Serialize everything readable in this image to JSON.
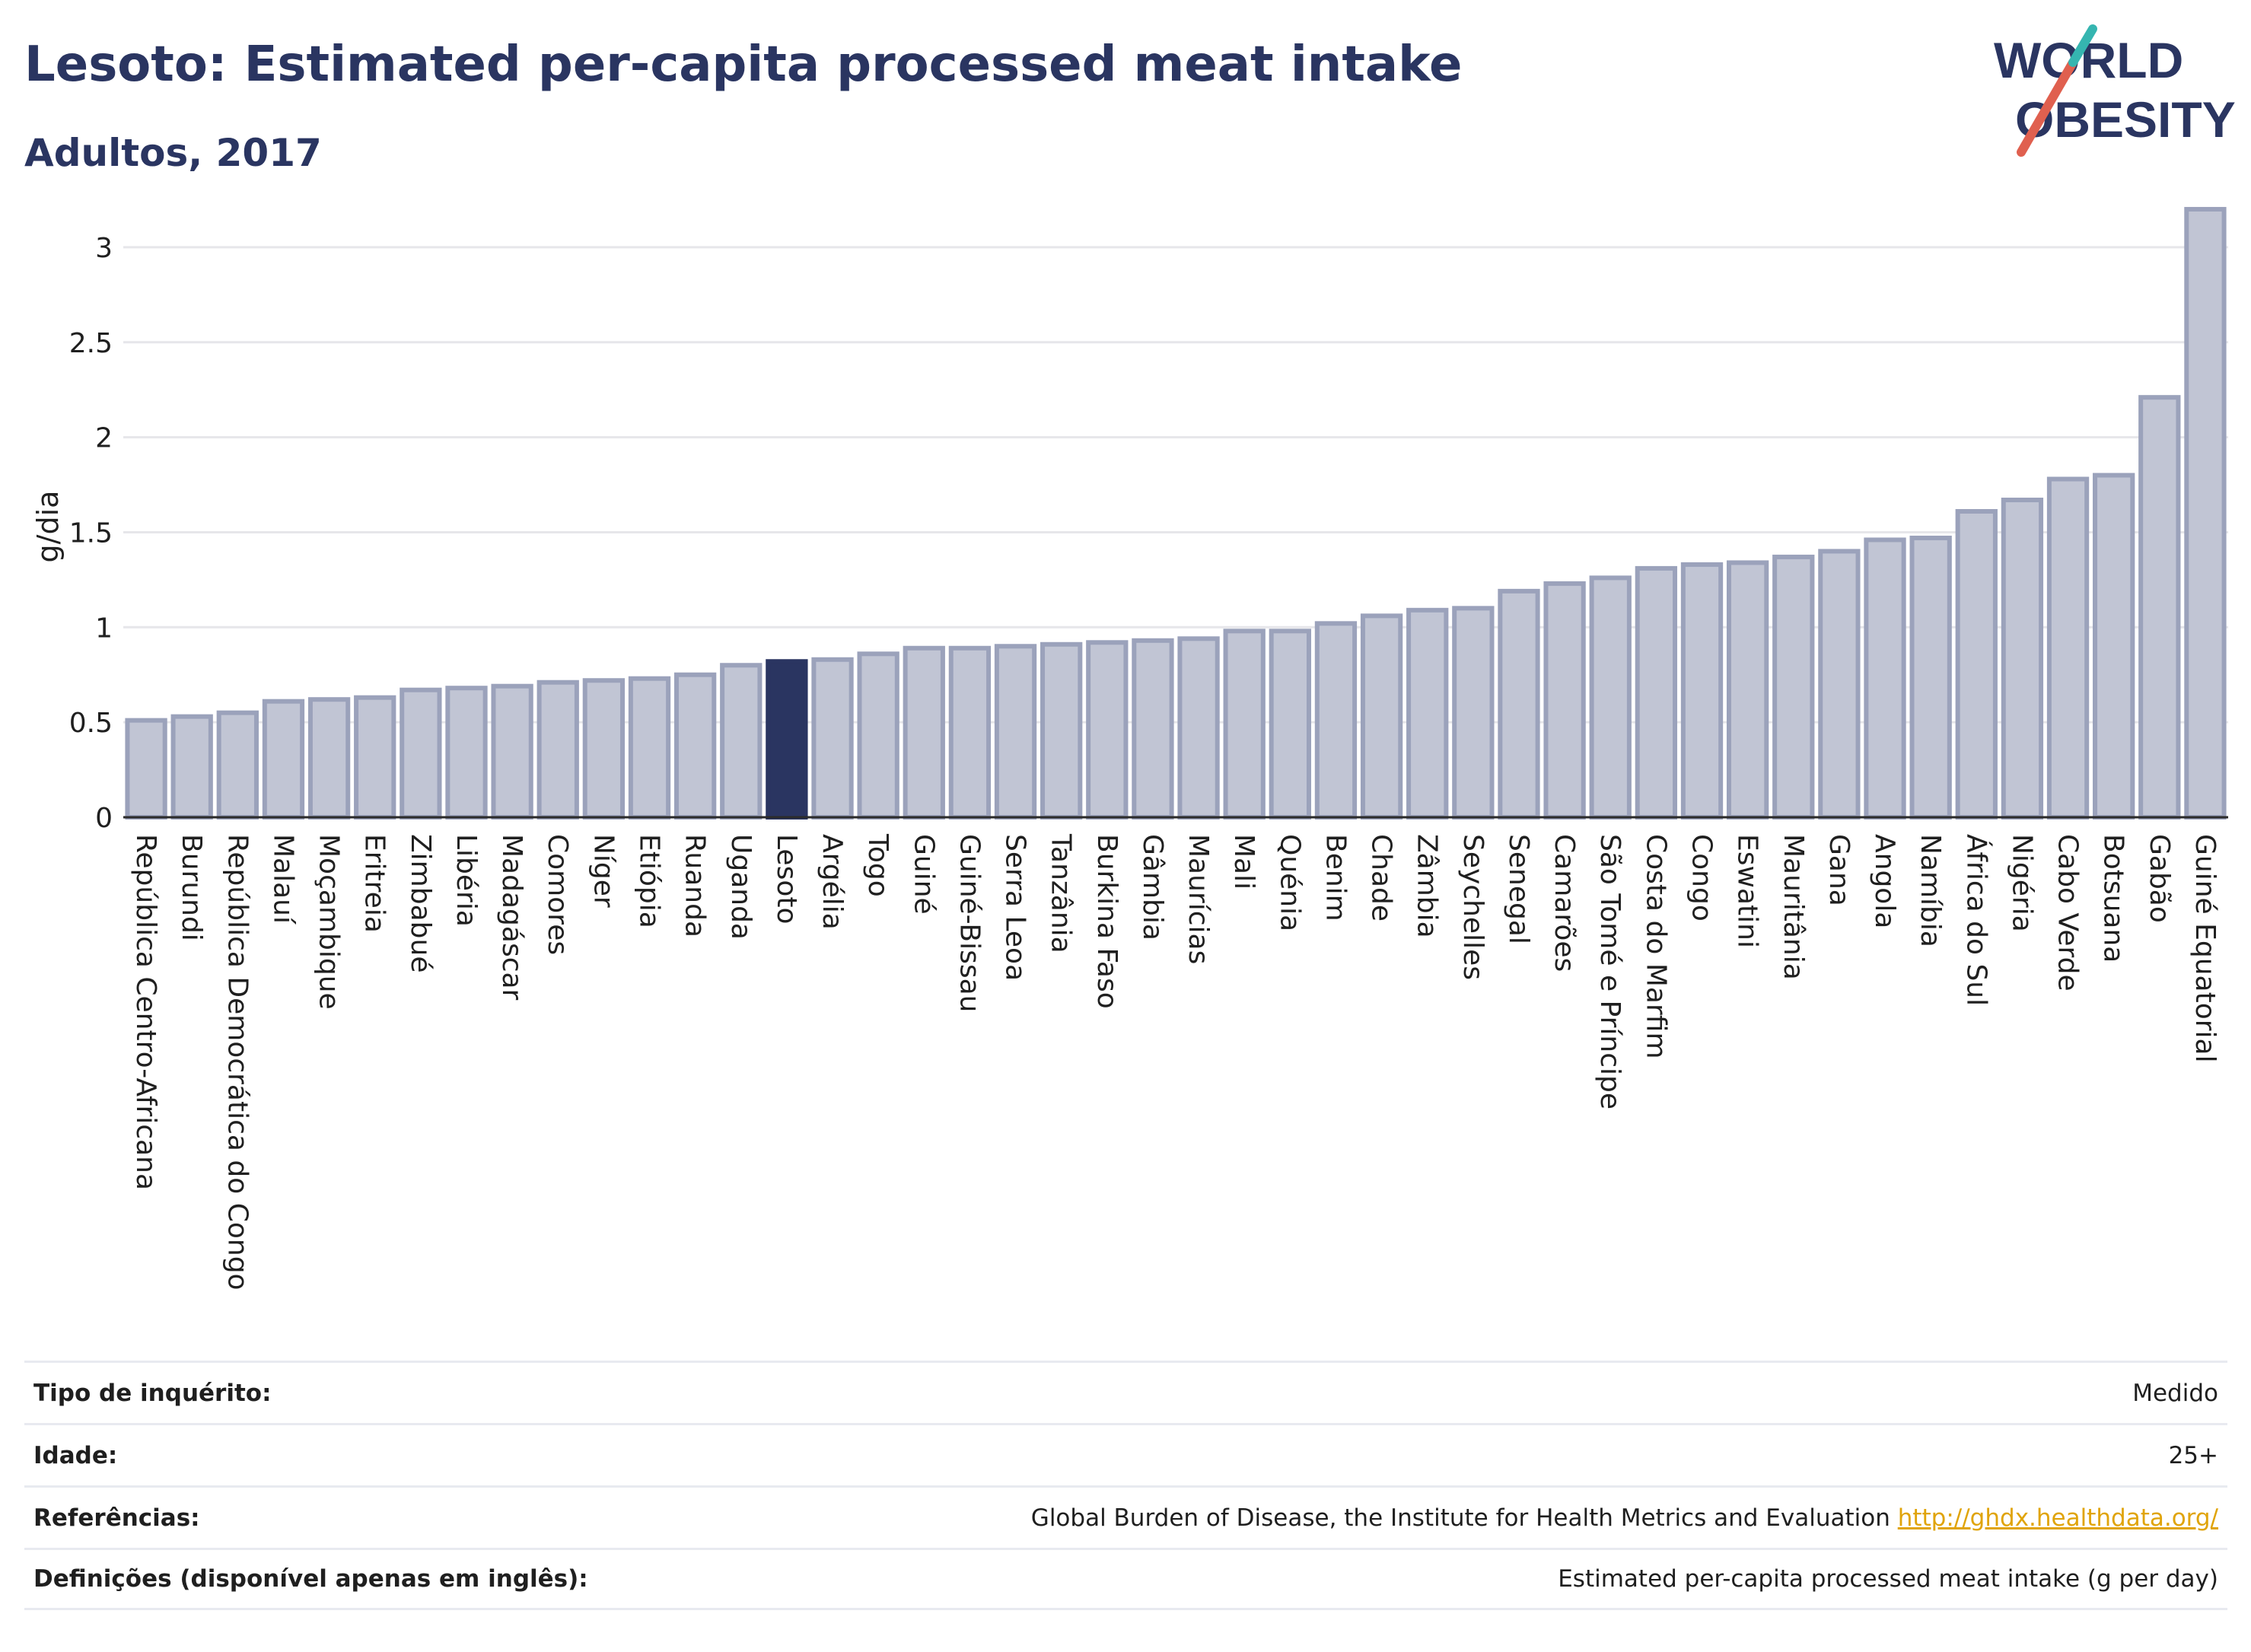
{
  "header": {
    "title": "Lesoto: Estimated per-capita processed meat intake",
    "subtitle": "Adultos, 2017",
    "logo_line1": "WORLD",
    "logo_line2": "OBESITY"
  },
  "chart_data": {
    "type": "bar",
    "ylabel": "g/dia",
    "ylim": [
      0,
      3.3
    ],
    "yticks": [
      0,
      0.5,
      1,
      1.5,
      2,
      2.5,
      3
    ],
    "ytick_labels": [
      "0",
      "0.5",
      "1",
      "1.5",
      "2",
      "2.5",
      "3"
    ],
    "grid": true,
    "highlight": "Lesoto",
    "colors": {
      "bar": "#c1c5d4",
      "bar_border": "#9ba2bb",
      "highlight": "#2a3561",
      "grid": "#e6e6ea",
      "axis": "#2a2a2a"
    },
    "categories": [
      "República Centro-Africana",
      "Burundi",
      "República Democrática do Congo",
      "Malauí",
      "Moçambique",
      "Eritreia",
      "Zimbabué",
      "Libéria",
      "Madagáscar",
      "Comores",
      "Níger",
      "Etiópia",
      "Ruanda",
      "Uganda",
      "Lesoto",
      "Argélia",
      "Togo",
      "Guiné",
      "Guiné-Bissau",
      "Serra Leoa",
      "Tanzânia",
      "Burkina Faso",
      "Gâmbia",
      "Maurícias",
      "Mali",
      "Quénia",
      "Benim",
      "Chade",
      "Zâmbia",
      "Seychelles",
      "Senegal",
      "Camarões",
      "São Tomé e Príncipe",
      "Costa do Marfim",
      "Congo",
      "Eswatini",
      "Mauritânia",
      "Gana",
      "Angola",
      "Namíbia",
      "África do Sul",
      "Nigéria",
      "Cabo Verde",
      "Botsuana",
      "Gabão",
      "Guiné Equatorial"
    ],
    "values": [
      0.51,
      0.53,
      0.55,
      0.61,
      0.62,
      0.63,
      0.67,
      0.68,
      0.69,
      0.71,
      0.72,
      0.73,
      0.75,
      0.8,
      0.82,
      0.83,
      0.86,
      0.89,
      0.89,
      0.9,
      0.91,
      0.92,
      0.93,
      0.94,
      0.98,
      0.98,
      1.02,
      1.06,
      1.09,
      1.1,
      1.19,
      1.23,
      1.26,
      1.31,
      1.33,
      1.34,
      1.37,
      1.4,
      1.46,
      1.47,
      1.61,
      1.67,
      1.78,
      1.8,
      2.21,
      3.2
    ]
  },
  "meta": {
    "survey_label": "Tipo de inquérito:",
    "survey_value": "Medido",
    "age_label": "Idade:",
    "age_value": "25+",
    "ref_label": "Referências:",
    "ref_text": "Global Burden of Disease, the Institute for Health Metrics and Evaluation",
    "ref_link": "http://ghdx.healthdata.org/",
    "def_label": "Definições (disponível apenas em inglês):",
    "def_value": "Estimated per-capita processed meat intake (g per day)"
  }
}
